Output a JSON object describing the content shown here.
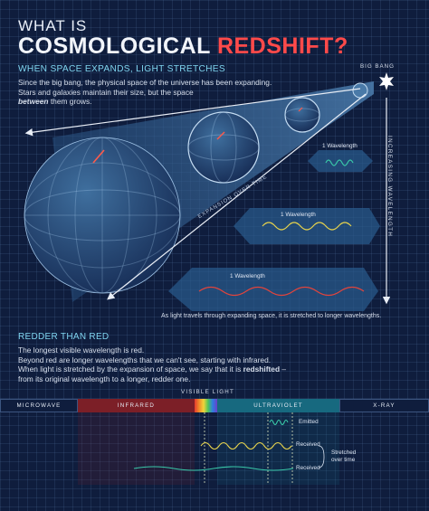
{
  "header": {
    "eyebrow": "WHAT IS",
    "title_part1": "COSMOLOGICAL ",
    "title_part2": "REDSHIFT?",
    "subtitle": "WHEN SPACE EXPANDS, LIGHT STRETCHES",
    "intro_line1": "Since the big bang, the physical space of the universe has been expanding.",
    "intro_line2": "Stars and galaxies maintain their size, but the space",
    "intro_em": "between",
    "intro_tail": " them grows."
  },
  "diagram": {
    "big_bang_label": "BIG BANG",
    "increasing_label": "INCREASING WAVELENGTH",
    "expansion_label": "EXPANSION OVER TIME",
    "wavelength_label": "1 Wavelength",
    "caption": "As light travels through expanding space, it is stretched to longer wavelengths."
  },
  "section2": {
    "heading": "REDDER THAN RED",
    "line1": "The longest visible wavelength is red.",
    "line2": "Beyond red are longer wavelengths that we can't see, starting with infrared.",
    "line3_start": "When light is stretched by the expansion of space, we say that it is ",
    "line3_bold": "redshifted",
    "line3_end": " –",
    "line4": "from its original wavelength to a longer, redder one."
  },
  "spectrum": {
    "visible_label": "VISIBLE LIGHT",
    "bands": [
      {
        "label": "MICROWAVE",
        "color": "#0f1d3d"
      },
      {
        "label": "INFRARED",
        "color": "#7c1f27"
      },
      {
        "label": "ULTRAVIOLET",
        "color": "#17697f"
      },
      {
        "label": "X-RAY",
        "color": "#0f1d3d"
      }
    ],
    "emitted_label": "Emitted",
    "received_label_1": "Received",
    "received_label_2": "Received",
    "stretched_label_1": "Stretched",
    "stretched_label_2": "over time"
  },
  "colors": {
    "background": "#0f1d3d",
    "accent_cyan": "#7fd4ef",
    "accent_red": "#ff4a4a",
    "wave_green": "#39c8a8",
    "wave_yellow": "#e8d44c"
  }
}
